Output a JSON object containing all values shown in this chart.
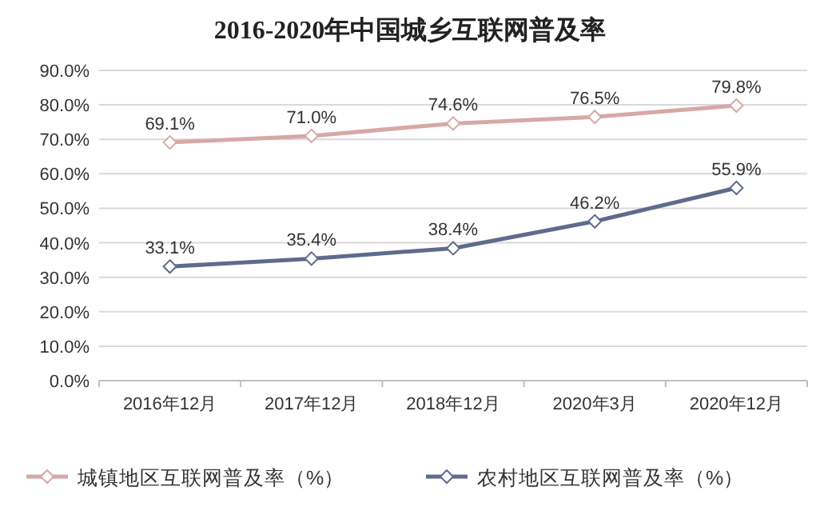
{
  "chart_data": {
    "type": "line",
    "title": "2016-2020年中国城乡互联网普及率",
    "categories": [
      "2016年12月",
      "2017年12月",
      "2018年12月",
      "2020年3月",
      "2020年12月"
    ],
    "series": [
      {
        "name": "城镇地区互联网普及率（%）",
        "color": "#d6a8a6",
        "values": [
          69.1,
          71.0,
          74.6,
          76.5,
          79.8
        ],
        "value_labels": [
          "69.1%",
          "71.0%",
          "74.6%",
          "76.5%",
          "79.8%"
        ]
      },
      {
        "name": "农村地区互联网普及率（%）",
        "color": "#5f6b8c",
        "values": [
          33.1,
          35.4,
          38.4,
          46.2,
          55.9
        ],
        "value_labels": [
          "33.1%",
          "35.4%",
          "38.4%",
          "46.2%",
          "55.9%"
        ]
      }
    ],
    "ylim": [
      0,
      90
    ],
    "yticks": [
      {
        "value": 0,
        "label": "0.0%"
      },
      {
        "value": 10,
        "label": "10.0%"
      },
      {
        "value": 20,
        "label": "20.0%"
      },
      {
        "value": 30,
        "label": "30.0%"
      },
      {
        "value": 40,
        "label": "40.0%"
      },
      {
        "value": 50,
        "label": "50.0%"
      },
      {
        "value": 60,
        "label": "60.0%"
      },
      {
        "value": 70,
        "label": "70.0%"
      },
      {
        "value": 80,
        "label": "80.0%"
      },
      {
        "value": 90,
        "label": "90.0%"
      }
    ],
    "grid": "y",
    "legend": "bottom",
    "marker": "diamond",
    "line_style": "solid"
  }
}
